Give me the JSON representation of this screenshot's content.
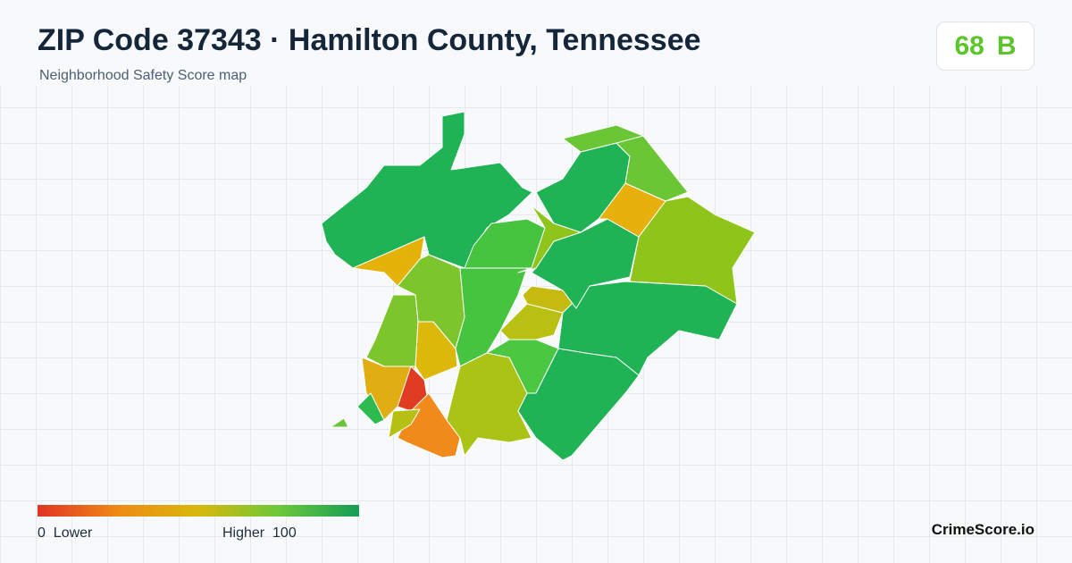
{
  "header": {
    "title": "ZIP Code 37343 · Hamilton County, Tennessee",
    "subtitle": "Neighborhood Safety Score map"
  },
  "score": {
    "value": 68,
    "grade": "B"
  },
  "legend": {
    "min": 0,
    "min_label": "Lower",
    "max_label": "Higher",
    "max": 100
  },
  "brand": "CrimeScore.io"
}
